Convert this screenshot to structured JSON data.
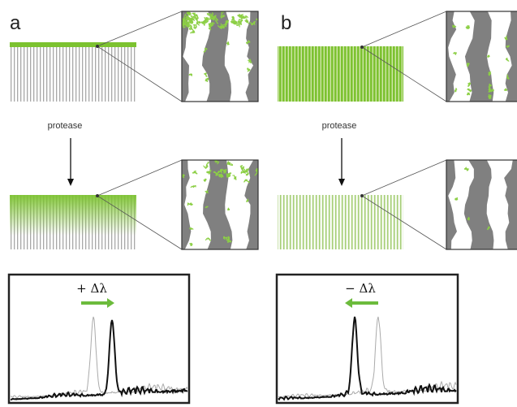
{
  "panels": [
    {
      "label": "a",
      "step": "protease",
      "shift": "+ Δλ"
    },
    {
      "label": "b",
      "step": "protease",
      "shift": "− Δλ"
    }
  ]
}
